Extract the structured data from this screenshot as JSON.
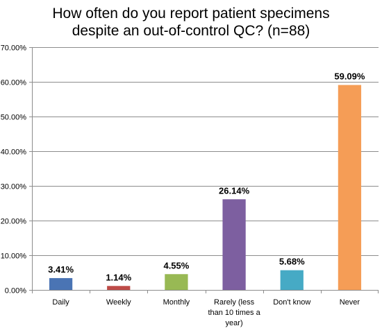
{
  "chart_data": {
    "type": "bar",
    "title_lines": [
      "How often do you report patient specimens",
      "despite an out-of-control QC? (n=88)"
    ],
    "categories": [
      [
        "Daily"
      ],
      [
        "Weekly"
      ],
      [
        "Monthly"
      ],
      [
        "Rarely (less",
        "than 10 times a",
        "year)"
      ],
      [
        "Don't know"
      ],
      [
        "Never"
      ]
    ],
    "values": [
      3.41,
      1.14,
      4.55,
      26.14,
      5.68,
      59.09
    ],
    "data_labels": [
      "3.41%",
      "1.14%",
      "4.55%",
      "26.14%",
      "5.68%",
      "59.09%"
    ],
    "colors": [
      "#4a74b4",
      "#be4b48",
      "#98b954",
      "#7d5fa0",
      "#46aac5",
      "#f59d56"
    ],
    "ylim": [
      0,
      70
    ],
    "y_ticks": [
      0,
      10,
      20,
      30,
      40,
      50,
      60,
      70
    ],
    "y_tick_labels": [
      "0.00%",
      "10.00%",
      "20.00%",
      "30.00%",
      "40.00%",
      "50.00%",
      "60.00%",
      "70.00%"
    ],
    "grid": true,
    "legend": "none",
    "xlabel": "",
    "ylabel": ""
  }
}
